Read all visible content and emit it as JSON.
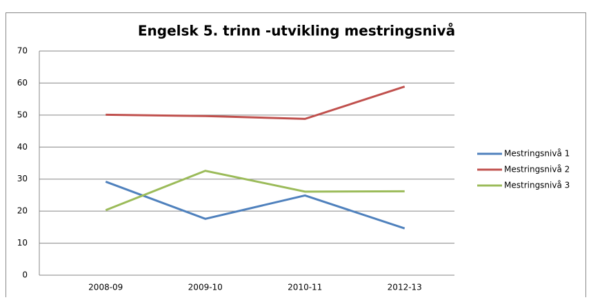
{
  "chart_data": {
    "type": "line",
    "title": "Engelsk 5. trinn -utvikling mestringsnivå",
    "categories": [
      "2008-09",
      "2009-10",
      "2010-11",
      "2012-13"
    ],
    "series": [
      {
        "name": "Mestringsnivå 1",
        "color": "#4f81bd",
        "values": [
          29.2,
          17.6,
          24.9,
          14.6
        ]
      },
      {
        "name": "Mestringsnivå 2",
        "color": "#c0504d",
        "values": [
          50.1,
          49.7,
          48.8,
          58.9
        ]
      },
      {
        "name": "Mestringsnivå 3",
        "color": "#9bbb59",
        "values": [
          20.3,
          32.6,
          26.1,
          26.2
        ]
      }
    ],
    "ylim": [
      0,
      70
    ],
    "yticks": [
      0,
      10,
      20,
      30,
      40,
      50,
      60,
      70
    ],
    "grid": true,
    "legend": "right"
  }
}
